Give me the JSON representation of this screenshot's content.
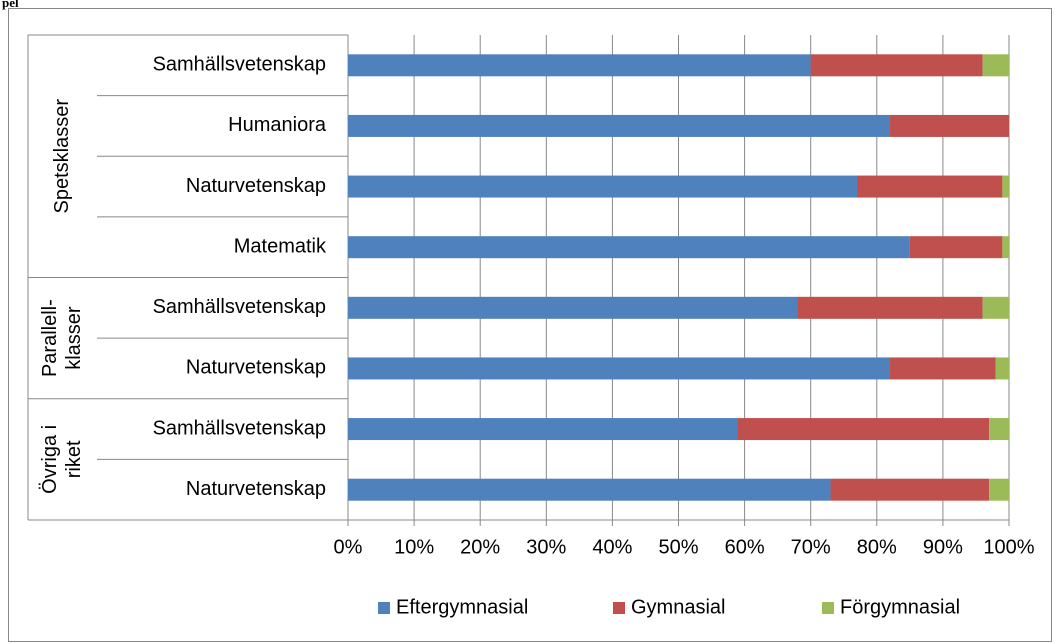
{
  "fragment": "pel",
  "chart_data": {
    "type": "stacked_barh",
    "groups": [
      {
        "name_lines": [
          "Spetsklasser"
        ],
        "categories": [
          "Samhällsvetenskap",
          "Humaniora",
          "Naturvetenskap",
          "Matematik"
        ]
      },
      {
        "name_lines": [
          "Parallell-",
          "klasser"
        ],
        "categories": [
          "Samhällsvetenskap",
          "Naturvetenskap"
        ]
      },
      {
        "name_lines": [
          "Övriga i",
          "riket"
        ],
        "categories": [
          "Samhällsvetenskap",
          "Naturvetenskap"
        ]
      }
    ],
    "series": [
      {
        "name": "Eftergymnasial",
        "color": "#4f81bd",
        "values": [
          70,
          82,
          77,
          85,
          68,
          82,
          59,
          73
        ]
      },
      {
        "name": "Gymnasial",
        "color": "#c0504d",
        "values": [
          26,
          18,
          22,
          14,
          28,
          16,
          38,
          24
        ]
      },
      {
        "name": "Förgymnasial",
        "color": "#9bbb59",
        "values": [
          4,
          0,
          1,
          1,
          4,
          2,
          3,
          3
        ]
      }
    ],
    "xlim": [
      0,
      100
    ],
    "xticks": [
      {
        "value": 0,
        "label": "0%"
      },
      {
        "value": 10,
        "label": "10%"
      },
      {
        "value": 20,
        "label": "20%"
      },
      {
        "value": 30,
        "label": "30%"
      },
      {
        "value": 40,
        "label": "40%"
      },
      {
        "value": 50,
        "label": "50%"
      },
      {
        "value": 60,
        "label": "60%"
      },
      {
        "value": 70,
        "label": "70%"
      },
      {
        "value": 80,
        "label": "80%"
      },
      {
        "value": 90,
        "label": "90%"
      },
      {
        "value": 100,
        "label": "100%"
      }
    ],
    "grid": true,
    "legend": "bottom"
  }
}
